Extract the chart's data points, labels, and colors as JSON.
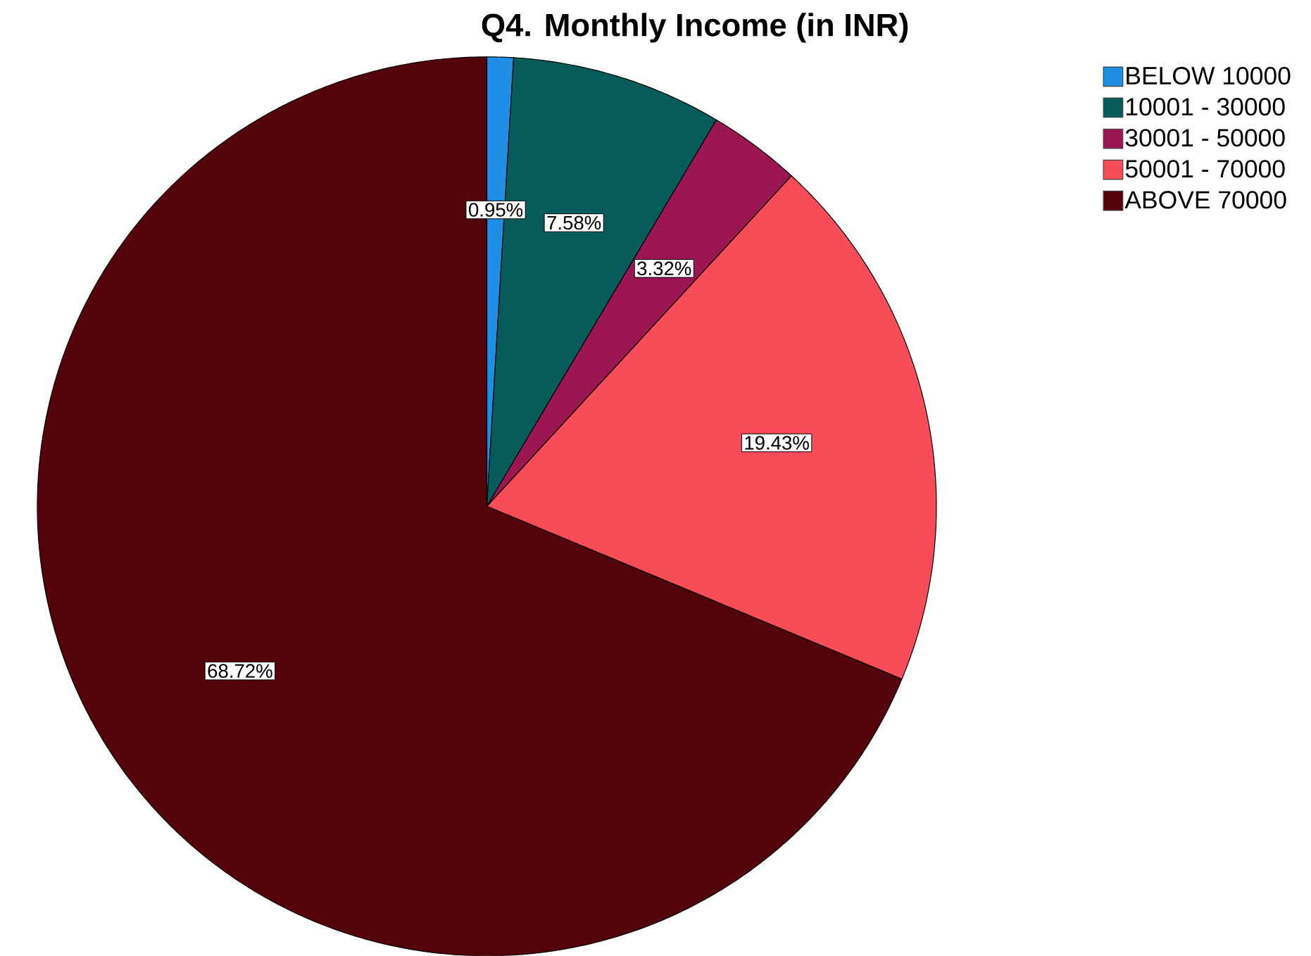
{
  "chart_data": {
    "type": "pie",
    "title": "Q4. Monthly Income (in INR)",
    "categories": [
      "BELOW 10000",
      "10001 - 30000",
      "30001 - 50000",
      "50001 - 70000",
      "ABOVE 70000"
    ],
    "values": [
      0.95,
      7.58,
      3.32,
      19.43,
      68.72
    ],
    "value_labels": [
      "0.95%",
      "7.58%",
      "3.32%",
      "19.43%",
      "68.72%"
    ],
    "colors": [
      "#1f8fe5",
      "#055c5a",
      "#9c1751",
      "#f84d58",
      "#530309"
    ],
    "legend": "top right"
  }
}
